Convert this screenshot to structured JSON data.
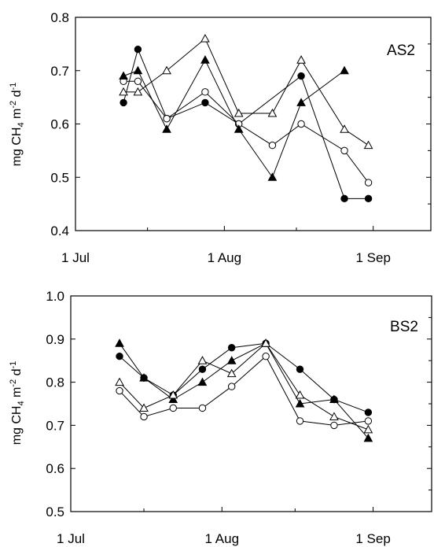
{
  "chart_data": [
    {
      "type": "line",
      "panel_label": "AS2",
      "ylabel": "mg CH4 m-2 d-1",
      "ylabel_parts": {
        "pre": "mg CH",
        "sub1": "4",
        "mid": " m",
        "sub2": "-2",
        "mid2": " d",
        "sup": "-1"
      },
      "ylim": [
        0.4,
        0.8
      ],
      "yticks": [
        0.4,
        0.5,
        0.6,
        0.7,
        0.8
      ],
      "ytick_labels": [
        "0.4",
        "0.5",
        "0.6",
        "0.7",
        "0.8"
      ],
      "xlim": [
        "2000-07-01",
        "2000-09-13"
      ],
      "xticks": [
        "2000-07-01",
        "2000-08-01",
        "2000-09-01"
      ],
      "xtick_labels": [
        "1 Jul",
        "1 Aug",
        "1 Sep"
      ],
      "x": [
        "2000-07-11",
        "2000-07-17",
        "2000-07-24",
        "2000-07-31",
        "2000-08-06",
        "2000-08-13",
        "2000-08-20",
        "2000-08-27",
        "2000-09-01"
      ],
      "series": [
        {
          "marker": "filled-circle",
          "values": [
            0.64,
            0.74,
            0.61,
            0.64,
            0.6,
            null,
            0.69,
            0.46,
            0.46
          ]
        },
        {
          "marker": "open-circle",
          "values": [
            0.68,
            0.68,
            0.61,
            0.66,
            0.6,
            0.56,
            0.6,
            0.55,
            0.49
          ]
        },
        {
          "marker": "filled-triangle",
          "values": [
            0.69,
            0.7,
            0.59,
            0.72,
            0.59,
            0.5,
            0.64,
            0.7,
            null
          ]
        },
        {
          "marker": "open-triangle",
          "values": [
            0.66,
            0.66,
            0.7,
            0.76,
            0.62,
            0.62,
            0.72,
            0.59,
            0.56
          ]
        }
      ],
      "series_override_x": {
        "0": [
          "2000-07-11",
          "2000-07-14",
          "2000-07-20",
          "2000-07-28",
          "2000-08-04",
          null,
          "2000-08-17",
          "2000-08-26",
          "2000-08-31"
        ],
        "1": [
          "2000-07-11",
          "2000-07-14",
          "2000-07-20",
          "2000-07-28",
          "2000-08-04",
          "2000-08-11",
          "2000-08-17",
          "2000-08-26",
          "2000-08-31"
        ],
        "2": [
          "2000-07-11",
          "2000-07-14",
          "2000-07-20",
          "2000-07-28",
          "2000-08-04",
          "2000-08-11",
          "2000-08-17",
          "2000-08-26",
          null
        ],
        "3": [
          "2000-07-11",
          "2000-07-14",
          "2000-07-20",
          "2000-07-28",
          "2000-08-04",
          "2000-08-11",
          "2000-08-17",
          "2000-08-26",
          "2000-08-31"
        ]
      },
      "grid": false
    },
    {
      "type": "line",
      "panel_label": "BS2",
      "ylabel": "mg CH4 m-2 d-1",
      "ylabel_parts": {
        "pre": "mg CH",
        "sub1": "4",
        "mid": " m",
        "sub2": "-2",
        "mid2": " d",
        "sup": "-1"
      },
      "ylim": [
        0.5,
        1.0
      ],
      "yticks": [
        0.5,
        0.6,
        0.7,
        0.8,
        0.9,
        1.0
      ],
      "ytick_labels": [
        "0.5",
        "0.6",
        "0.7",
        "0.8",
        "0.9",
        "1.0"
      ],
      "xlim": [
        "2000-07-01",
        "2000-09-13"
      ],
      "xticks": [
        "2000-07-01",
        "2000-08-01",
        "2000-09-01"
      ],
      "xtick_labels": [
        "1 Jul",
        "1 Aug",
        "1 Sep"
      ],
      "x": [
        "2000-07-11",
        "2000-07-16",
        "2000-07-22",
        "2000-07-28",
        "2000-08-03",
        "2000-08-10",
        "2000-08-17",
        "2000-08-24",
        "2000-08-31"
      ],
      "series": [
        {
          "marker": "filled-circle",
          "values": [
            0.86,
            0.81,
            0.77,
            0.83,
            0.88,
            0.89,
            0.83,
            0.76,
            0.73
          ]
        },
        {
          "marker": "open-circle",
          "values": [
            0.78,
            0.72,
            0.74,
            0.74,
            0.79,
            0.86,
            0.71,
            0.7,
            0.71
          ]
        },
        {
          "marker": "filled-triangle",
          "values": [
            0.89,
            0.81,
            0.76,
            0.8,
            0.85,
            0.89,
            0.75,
            0.76,
            0.67
          ]
        },
        {
          "marker": "open-triangle",
          "values": [
            0.8,
            0.74,
            0.77,
            0.85,
            0.82,
            0.89,
            0.77,
            0.72,
            0.69
          ]
        }
      ],
      "grid": false
    }
  ]
}
